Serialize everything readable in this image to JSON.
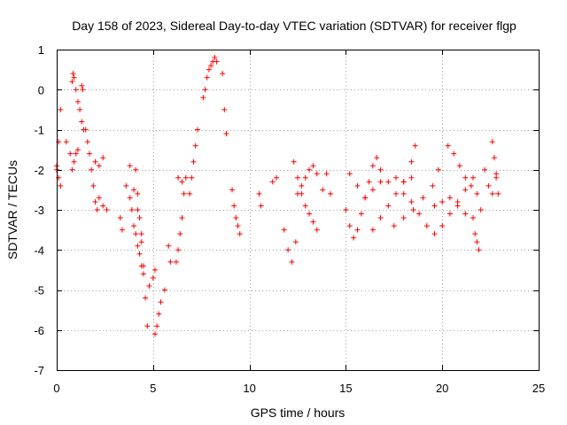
{
  "chart_data": {
    "type": "scatter",
    "title": "Day 158 of 2023, Sidereal Day-to-day VTEC variation (SDTVAR) for receiver flgp",
    "xlabel": "GPS time / hours",
    "ylabel": "SDTVAR / TECUs",
    "xlim": [
      0,
      25
    ],
    "ylim": [
      -7,
      1
    ],
    "xticks": [
      0,
      5,
      10,
      15,
      20,
      25
    ],
    "yticks": [
      1,
      0,
      -1,
      -2,
      -3,
      -4,
      -5,
      -6,
      -7
    ],
    "xtick_labels": [
      "0",
      "5",
      "10",
      "15",
      "20",
      "25"
    ],
    "ytick_labels": [
      "1",
      "0",
      "-1",
      "-2",
      "-3",
      "-4",
      "-5",
      "-6",
      "-7"
    ],
    "grid": true,
    "marker": "+",
    "color": "#ff0000",
    "series": [
      {
        "name": "SDTVAR",
        "segments": [
          {
            "x": [
              0.0,
              0.1,
              0.2
            ],
            "y": [
              -1.9,
              -1.3,
              -0.5
            ]
          },
          {
            "x": [
              0.0,
              0.1,
              0.2
            ],
            "y": [
              -2.0,
              -2.2,
              -2.4
            ]
          },
          {
            "x": [
              0.5,
              0.7,
              0.8,
              0.9,
              1.0,
              1.1
            ],
            "y": [
              -1.3,
              -1.6,
              -2.0,
              -1.8,
              -1.6,
              -1.5
            ]
          },
          {
            "x": [
              0.8,
              0.85,
              0.9,
              1.0,
              1.1,
              1.2,
              1.3,
              1.4
            ],
            "y": [
              0.2,
              0.4,
              0.3,
              0.0,
              -0.3,
              -0.5,
              -0.8,
              -1.0
            ]
          },
          {
            "x": [
              1.3,
              1.35
            ],
            "y": [
              0.1,
              0.0
            ]
          },
          {
            "x": [
              1.5,
              1.6,
              1.7,
              1.8,
              1.9,
              2.0,
              2.1
            ],
            "y": [
              -1.0,
              -1.3,
              -1.6,
              -2.0,
              -2.4,
              -2.8,
              -3.0
            ]
          },
          {
            "x": [
              2.0,
              2.2,
              2.4
            ],
            "y": [
              -1.8,
              -1.9,
              -1.7
            ]
          },
          {
            "x": [
              2.2,
              2.4,
              2.6
            ],
            "y": [
              -2.7,
              -2.9,
              -3.0
            ]
          },
          {
            "x": [
              3.3,
              3.4
            ],
            "y": [
              -3.2,
              -3.5
            ]
          },
          {
            "x": [
              3.6,
              3.8,
              3.9,
              4.0,
              4.1,
              4.2,
              4.3,
              4.4,
              4.5
            ],
            "y": [
              -2.4,
              -2.7,
              -3.0,
              -3.4,
              -3.6,
              -3.9,
              -4.1,
              -4.4,
              -4.6
            ]
          },
          {
            "x": [
              3.8,
              4.0,
              4.2,
              4.4,
              4.5,
              4.6,
              4.7
            ],
            "y": [
              -1.9,
              -2.5,
              -3.0,
              -3.6,
              -4.4,
              -5.2,
              -5.9
            ]
          },
          {
            "x": [
              4.1,
              4.2,
              4.3,
              4.4
            ],
            "y": [
              -2.0,
              -2.6,
              -3.2,
              -3.8
            ]
          },
          {
            "x": [
              4.8,
              5.0,
              5.1
            ],
            "y": [
              -4.9,
              -4.7,
              -4.5
            ]
          },
          {
            "x": [
              5.1,
              5.2,
              5.3,
              5.4,
              5.6
            ],
            "y": [
              -6.1,
              -5.9,
              -5.6,
              -5.3,
              -5.0
            ]
          },
          {
            "x": [
              5.8,
              5.9
            ],
            "y": [
              -3.9,
              -4.3
            ]
          },
          {
            "x": [
              6.2,
              6.3,
              6.4,
              6.5,
              6.6
            ],
            "y": [
              -4.3,
              -4.0,
              -3.6,
              -3.2,
              -2.6
            ]
          },
          {
            "x": [
              6.3,
              6.5,
              6.7
            ],
            "y": [
              -2.2,
              -2.3,
              -2.2
            ]
          },
          {
            "x": [
              6.9,
              7.0,
              7.1,
              7.2,
              7.3
            ],
            "y": [
              -2.6,
              -2.2,
              -1.8,
              -1.4,
              -1.0
            ]
          },
          {
            "x": [
              7.6,
              7.7,
              7.8,
              7.9,
              8.0,
              8.1,
              8.2,
              8.3
            ],
            "y": [
              -0.2,
              0.0,
              0.3,
              0.5,
              0.6,
              0.7,
              0.8,
              0.7
            ]
          },
          {
            "x": [
              8.6,
              8.7,
              8.8
            ],
            "y": [
              0.4,
              -0.5,
              -1.1
            ]
          },
          {
            "x": [
              9.1,
              9.2,
              9.3,
              9.4,
              9.5
            ],
            "y": [
              -2.5,
              -2.9,
              -3.2,
              -3.4,
              -3.6
            ]
          },
          {
            "x": [
              10.5,
              10.6
            ],
            "y": [
              -2.6,
              -2.9
            ]
          },
          {
            "x": [
              11.2,
              11.4
            ],
            "y": [
              -2.3,
              -2.2
            ]
          },
          {
            "x": [
              11.8,
              12.0,
              12.2,
              12.4
            ],
            "y": [
              -3.5,
              -4.0,
              -4.3,
              -3.8
            ]
          },
          {
            "x": [
              12.3,
              12.5,
              12.7,
              12.9,
              13.1,
              13.3,
              13.5
            ],
            "y": [
              -1.8,
              -2.2,
              -2.6,
              -2.9,
              -3.1,
              -3.3,
              -3.5
            ]
          },
          {
            "x": [
              12.5,
              12.7,
              12.9,
              13.1,
              13.3,
              13.5
            ],
            "y": [
              -2.6,
              -2.4,
              -2.2,
              -2.0,
              -1.9,
              -2.1
            ]
          },
          {
            "x": [
              13.8,
              14.0,
              14.2
            ],
            "y": [
              -2.5,
              -2.1,
              -2.6
            ]
          },
          {
            "x": [
              15.0,
              15.2,
              15.4,
              15.6,
              15.8,
              16.0,
              16.2,
              16.4,
              16.6,
              16.8
            ],
            "y": [
              -3.0,
              -3.4,
              -3.7,
              -3.5,
              -3.1,
              -2.7,
              -2.3,
              -1.9,
              -1.7,
              -2.0
            ]
          },
          {
            "x": [
              15.2,
              15.6,
              16.0,
              16.4,
              16.8,
              17.2,
              17.6,
              18.0,
              18.4
            ],
            "y": [
              -2.1,
              -2.4,
              -2.7,
              -2.5,
              -2.3,
              -2.3,
              -2.2,
              -2.3,
              -2.2
            ]
          },
          {
            "x": [
              16.4,
              16.8,
              17.2,
              17.6,
              18.0,
              18.4,
              18.6
            ],
            "y": [
              -3.5,
              -3.2,
              -2.9,
              -2.6,
              -2.3,
              -1.8,
              -1.4
            ]
          },
          {
            "x": [
              17.5,
              18.0,
              18.5,
              19.0,
              19.5,
              19.8
            ],
            "y": [
              -3.4,
              -3.2,
              -3.0,
              -2.7,
              -2.4,
              -2.0
            ]
          },
          {
            "x": [
              18.0,
              18.4,
              18.8,
              19.2,
              19.6,
              20.0,
              20.4,
              20.8,
              21.2,
              21.6
            ],
            "y": [
              -2.6,
              -2.8,
              -3.1,
              -3.4,
              -3.6,
              -3.4,
              -3.1,
              -2.8,
              -2.5,
              -2.2
            ]
          },
          {
            "x": [
              19.6,
              20.0,
              20.4,
              20.8,
              21.2,
              21.6,
              22.0
            ],
            "y": [
              -2.9,
              -2.8,
              -2.7,
              -2.9,
              -3.1,
              -3.2,
              -3.0
            ]
          },
          {
            "x": [
              20.3,
              20.6,
              20.9,
              21.2,
              21.5,
              21.8
            ],
            "y": [
              -1.4,
              -1.6,
              -1.9,
              -2.2,
              -2.4,
              -2.6
            ]
          },
          {
            "x": [
              21.7,
              21.8,
              21.9
            ],
            "y": [
              -3.6,
              -3.8,
              -4.0
            ]
          },
          {
            "x": [
              22.2,
              22.4,
              22.6,
              22.8
            ],
            "y": [
              -2.0,
              -2.4,
              -2.6,
              -2.2
            ]
          },
          {
            "x": [
              22.6,
              22.7,
              22.8,
              22.9
            ],
            "y": [
              -1.3,
              -1.7,
              -2.1,
              -2.6
            ]
          }
        ]
      }
    ]
  }
}
